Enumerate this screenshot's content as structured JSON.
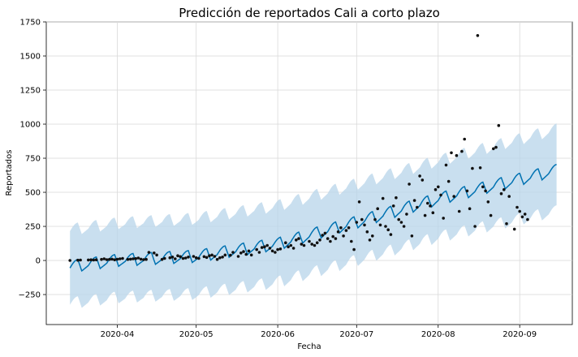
{
  "chart_data": {
    "type": "line",
    "title": "Predicción de reportados Cali a corto plazo",
    "xlabel": "Fecha",
    "ylabel": "Reportados",
    "x_ticks": [
      "2020-04",
      "2020-05",
      "2020-06",
      "2020-07",
      "2020-08",
      "2020-09"
    ],
    "y_ticks": [
      -250,
      0,
      250,
      500,
      750,
      1000,
      1250,
      1500,
      1750
    ],
    "xlim": [
      "2020-03-05",
      "2020-09-21"
    ],
    "ylim": [
      -470,
      1750
    ],
    "grid": true,
    "colors": {
      "forecast": "#0072B2",
      "interval": "#B7D4EA",
      "observed": "#111111"
    },
    "forecast_trend": [
      [
        "2020-03-14",
        -55
      ],
      [
        "2020-04-01",
        -10
      ],
      [
        "2020-05-01",
        20
      ],
      [
        "2020-06-01",
        110
      ],
      [
        "2020-07-01",
        270
      ],
      [
        "2020-08-01",
        440
      ],
      [
        "2020-09-15",
        650
      ]
    ],
    "weekly_amplitude": 55,
    "interval_halfwidth": [
      [
        "2020-03-14",
        270
      ],
      [
        "2020-06-01",
        280
      ],
      [
        "2020-08-01",
        280
      ],
      [
        "2020-09-15",
        300
      ]
    ],
    "observed_points": [
      [
        "2020-03-14",
        0
      ],
      [
        "2020-03-17",
        2
      ],
      [
        "2020-03-18",
        3
      ],
      [
        "2020-03-21",
        4
      ],
      [
        "2020-03-22",
        5
      ],
      [
        "2020-03-23",
        3
      ],
      [
        "2020-03-24",
        5
      ],
      [
        "2020-03-26",
        8
      ],
      [
        "2020-03-27",
        12
      ],
      [
        "2020-03-28",
        6
      ],
      [
        "2020-03-29",
        8
      ],
      [
        "2020-03-30",
        10
      ],
      [
        "2020-03-31",
        5
      ],
      [
        "2020-04-01",
        9
      ],
      [
        "2020-04-02",
        12
      ],
      [
        "2020-04-03",
        15
      ],
      [
        "2020-04-05",
        8
      ],
      [
        "2020-04-06",
        10
      ],
      [
        "2020-04-07",
        12
      ],
      [
        "2020-04-08",
        14
      ],
      [
        "2020-04-09",
        18
      ],
      [
        "2020-04-10",
        10
      ],
      [
        "2020-04-11",
        6
      ],
      [
        "2020-04-12",
        8
      ],
      [
        "2020-04-13",
        60
      ],
      [
        "2020-04-15",
        55
      ],
      [
        "2020-04-16",
        40
      ],
      [
        "2020-04-18",
        8
      ],
      [
        "2020-04-19",
        15
      ],
      [
        "2020-04-21",
        20
      ],
      [
        "2020-04-22",
        25
      ],
      [
        "2020-04-23",
        12
      ],
      [
        "2020-04-24",
        35
      ],
      [
        "2020-04-25",
        28
      ],
      [
        "2020-04-26",
        15
      ],
      [
        "2020-04-27",
        18
      ],
      [
        "2020-04-28",
        25
      ],
      [
        "2020-04-30",
        30
      ],
      [
        "2020-05-01",
        20
      ],
      [
        "2020-05-02",
        15
      ],
      [
        "2020-05-04",
        28
      ],
      [
        "2020-05-05",
        22
      ],
      [
        "2020-05-06",
        35
      ],
      [
        "2020-05-07",
        40
      ],
      [
        "2020-05-08",
        30
      ],
      [
        "2020-05-09",
        8
      ],
      [
        "2020-05-10",
        20
      ],
      [
        "2020-05-11",
        25
      ],
      [
        "2020-05-12",
        40
      ],
      [
        "2020-05-14",
        38
      ],
      [
        "2020-05-15",
        60
      ],
      [
        "2020-05-17",
        30
      ],
      [
        "2020-05-18",
        55
      ],
      [
        "2020-05-19",
        65
      ],
      [
        "2020-05-20",
        45
      ],
      [
        "2020-05-21",
        70
      ],
      [
        "2020-05-22",
        40
      ],
      [
        "2020-05-24",
        80
      ],
      [
        "2020-05-25",
        60
      ],
      [
        "2020-05-26",
        95
      ],
      [
        "2020-05-27",
        100
      ],
      [
        "2020-05-28",
        110
      ],
      [
        "2020-05-29",
        90
      ],
      [
        "2020-05-30",
        70
      ],
      [
        "2020-05-31",
        60
      ],
      [
        "2020-06-01",
        80
      ],
      [
        "2020-06-02",
        85
      ],
      [
        "2020-06-04",
        130
      ],
      [
        "2020-06-05",
        100
      ],
      [
        "2020-06-06",
        110
      ],
      [
        "2020-06-07",
        90
      ],
      [
        "2020-06-08",
        150
      ],
      [
        "2020-06-09",
        160
      ],
      [
        "2020-06-10",
        120
      ],
      [
        "2020-06-11",
        110
      ],
      [
        "2020-06-13",
        140
      ],
      [
        "2020-06-14",
        120
      ],
      [
        "2020-06-15",
        110
      ],
      [
        "2020-06-16",
        130
      ],
      [
        "2020-06-17",
        150
      ],
      [
        "2020-06-18",
        185
      ],
      [
        "2020-06-19",
        200
      ],
      [
        "2020-06-20",
        160
      ],
      [
        "2020-06-21",
        140
      ],
      [
        "2020-06-22",
        175
      ],
      [
        "2020-06-23",
        160
      ],
      [
        "2020-06-24",
        210
      ],
      [
        "2020-06-25",
        240
      ],
      [
        "2020-06-26",
        180
      ],
      [
        "2020-06-27",
        220
      ],
      [
        "2020-06-28",
        240
      ],
      [
        "2020-06-29",
        140
      ],
      [
        "2020-06-30",
        80
      ],
      [
        "2020-07-01",
        280
      ],
      [
        "2020-07-02",
        430
      ],
      [
        "2020-07-03",
        300
      ],
      [
        "2020-07-04",
        260
      ],
      [
        "2020-07-05",
        210
      ],
      [
        "2020-07-06",
        150
      ],
      [
        "2020-07-07",
        180
      ],
      [
        "2020-07-08",
        300
      ],
      [
        "2020-07-09",
        380
      ],
      [
        "2020-07-10",
        260
      ],
      [
        "2020-07-11",
        455
      ],
      [
        "2020-07-12",
        250
      ],
      [
        "2020-07-13",
        225
      ],
      [
        "2020-07-14",
        190
      ],
      [
        "2020-07-15",
        400
      ],
      [
        "2020-07-16",
        460
      ],
      [
        "2020-07-17",
        300
      ],
      [
        "2020-07-18",
        280
      ],
      [
        "2020-07-19",
        250
      ],
      [
        "2020-07-20",
        340
      ],
      [
        "2020-07-21",
        560
      ],
      [
        "2020-07-22",
        180
      ],
      [
        "2020-07-23",
        440
      ],
      [
        "2020-07-24",
        390
      ],
      [
        "2020-07-25",
        620
      ],
      [
        "2020-07-26",
        590
      ],
      [
        "2020-07-27",
        330
      ],
      [
        "2020-07-28",
        420
      ],
      [
        "2020-07-29",
        400
      ],
      [
        "2020-07-30",
        350
      ],
      [
        "2020-07-31",
        520
      ],
      [
        "2020-08-01",
        540
      ],
      [
        "2020-08-02",
        480
      ],
      [
        "2020-08-03",
        310
      ],
      [
        "2020-08-04",
        700
      ],
      [
        "2020-08-05",
        580
      ],
      [
        "2020-08-06",
        790
      ],
      [
        "2020-08-07",
        470
      ],
      [
        "2020-08-08",
        770
      ],
      [
        "2020-08-09",
        360
      ],
      [
        "2020-08-10",
        800
      ],
      [
        "2020-08-11",
        890
      ],
      [
        "2020-08-12",
        510
      ],
      [
        "2020-08-13",
        380
      ],
      [
        "2020-08-14",
        675
      ],
      [
        "2020-08-15",
        250
      ],
      [
        "2020-08-16",
        1650
      ],
      [
        "2020-08-17",
        680
      ],
      [
        "2020-08-18",
        540
      ],
      [
        "2020-08-19",
        510
      ],
      [
        "2020-08-20",
        430
      ],
      [
        "2020-08-21",
        330
      ],
      [
        "2020-08-22",
        820
      ],
      [
        "2020-08-23",
        830
      ],
      [
        "2020-08-24",
        990
      ],
      [
        "2020-08-25",
        490
      ],
      [
        "2020-08-26",
        520
      ],
      [
        "2020-08-27",
        270
      ],
      [
        "2020-08-28",
        470
      ],
      [
        "2020-08-30",
        230
      ],
      [
        "2020-08-31",
        390
      ],
      [
        "2020-09-01",
        360
      ],
      [
        "2020-09-02",
        320
      ],
      [
        "2020-09-03",
        340
      ],
      [
        "2020-09-04",
        300
      ]
    ]
  }
}
